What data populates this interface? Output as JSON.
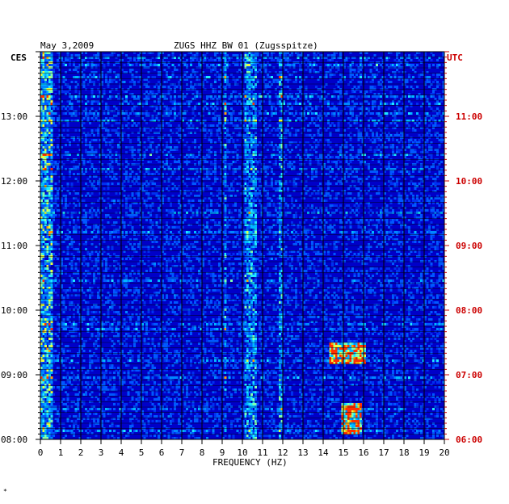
{
  "header": {
    "date": "May 3,2009",
    "station": "ZUGS HHZ BW 01 (Zugsspitze)",
    "left_zone": "CES",
    "right_zone": "UTC"
  },
  "chart_data": {
    "type": "heatmap",
    "title": "ZUGS HHZ BW 01 (Zugsspitze)",
    "date": "May 3,2009",
    "xlabel": "FREQUENCY (HZ)",
    "x_ticks": [
      "0",
      "1",
      "2",
      "3",
      "4",
      "5",
      "6",
      "7",
      "8",
      "9",
      "10",
      "11",
      "12",
      "13",
      "14",
      "15",
      "16",
      "17",
      "18",
      "19",
      "20"
    ],
    "xlim": [
      0,
      20
    ],
    "y_ticks_left": [
      "13:00",
      "12:00",
      "11:00",
      "10:00",
      "09:00",
      "08:00"
    ],
    "y_ticks_right": [
      "11:00",
      "10:00",
      "09:00",
      "08:00",
      "07:00",
      "06:00"
    ],
    "y_tick_hours": [
      13,
      12,
      11,
      10,
      9,
      8
    ],
    "ylim_hours": [
      8.0,
      14.0
    ],
    "colors": {
      "background": "#0000c8",
      "grid": "#000000",
      "left_axis": "#000000",
      "right_axis": "#cc0000"
    },
    "features": [
      {
        "freq_low": 9.0,
        "freq_high": 9.1,
        "note": "persistent line"
      },
      {
        "freq_low": 10.0,
        "freq_high": 10.6,
        "note": "persistent band"
      },
      {
        "freq_low": 11.7,
        "freq_high": 11.9,
        "note": "persistent line"
      },
      {
        "freq_low": 14.2,
        "freq_high": 16.0,
        "time_start": "09:10",
        "time_end": "09:30",
        "note": "burst"
      },
      {
        "freq_low": 14.8,
        "freq_high": 15.8,
        "time_start": "08:05",
        "time_end": "08:35",
        "note": "burst"
      }
    ]
  },
  "footer": {
    "mark": "*"
  }
}
